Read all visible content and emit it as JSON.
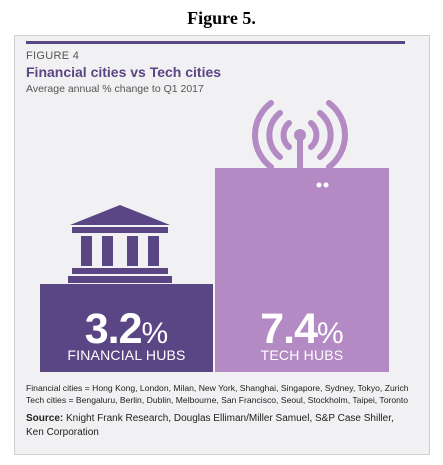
{
  "doc_title": "Figure 5.",
  "figure_label": "FIGURE 4",
  "colors": {
    "financial": "#5a4684",
    "tech": "#b38ac4",
    "accent": "#5a4684"
  },
  "chart_data": {
    "type": "bar",
    "title": "Financial cities vs Tech cities",
    "subtitle": "Average annual % change to Q1 2017",
    "categories": [
      "FINANCIAL HUBS",
      "TECH HUBS"
    ],
    "values": [
      3.2,
      7.4
    ],
    "value_labels": [
      "3.2",
      "7.4"
    ],
    "unit": "%",
    "ylim": [
      0,
      8
    ],
    "grid": false,
    "icons": [
      "bank-building-icon",
      "radio-tower-icon"
    ]
  },
  "notes": {
    "financial": "Financial cities = Hong Kong, London, Milan, New York, Shanghai, Singapore, Sydney, Tokyo, Zurich",
    "tech": "Tech cities = Bengaluru, Berlin, Dublin, Melbourne, San Francisco, Seoul, Stockholm, Taipei, Toronto"
  },
  "source": {
    "label": "Source:",
    "text": "Knight Frank Research, Douglas Elliman/Miller Samuel, S&P Case Shiller, Ken Corporation"
  }
}
